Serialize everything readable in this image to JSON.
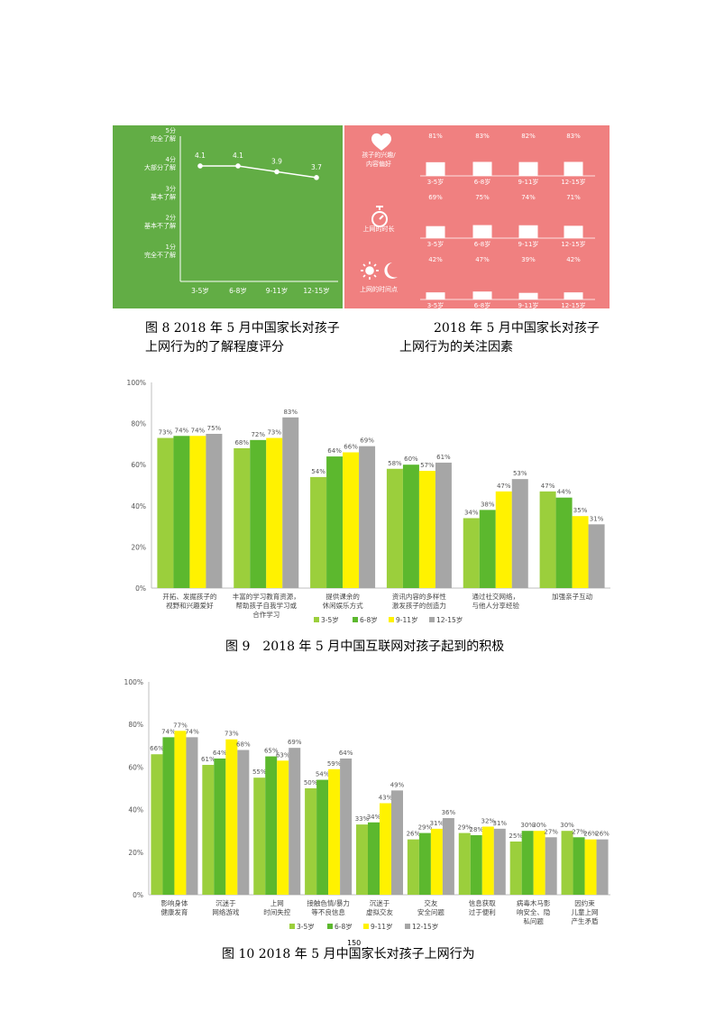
{
  "colors": {
    "green_bg": "#62ad45",
    "pink_bg": "#f08080",
    "s1": "#9bcf3c",
    "s2": "#5cb82e",
    "s3": "#fff200",
    "s4": "#a6a6a6"
  },
  "fig8": {
    "caption_line1": "图 8 2018 年 5 月中国家长对孩子",
    "caption_line2": "上网行为的了解程度评分",
    "icons": [
      "heart-icon",
      "stopwatch-icon",
      "sun-icon",
      "moon-icon"
    ]
  },
  "fig8b": {
    "caption_line1": "2018 年 5 月中国家长对孩子",
    "caption_line2": "上网行为的关注因素"
  },
  "fig9": {
    "caption": "图 9　2018 年 5 月中国互联网对孩子起到的积极"
  },
  "fig10": {
    "caption": "图 10 2018 年 5 月中国家长对孩子上网行为"
  },
  "page_number": "150",
  "chart_data": [
    {
      "type": "line",
      "categories": [
        "3-5岁",
        "6-8岁",
        "9-11岁",
        "12-15岁"
      ],
      "values": [
        4.1,
        4.1,
        3.9,
        3.7
      ],
      "ylim": [
        0,
        5
      ],
      "y_tick_labels": [
        {
          "v": 5,
          "l1": "5分",
          "l2": "完全了解"
        },
        {
          "v": 4,
          "l1": "4分",
          "l2": "大部分了解"
        },
        {
          "v": 3,
          "l1": "3分",
          "l2": "基本了解"
        },
        {
          "v": 2,
          "l1": "2分",
          "l2": "基本不了解"
        },
        {
          "v": 1,
          "l1": "1分",
          "l2": "完全不了解"
        }
      ],
      "data_labels": [
        "4.1",
        "4.1",
        "3.9",
        "3.7"
      ]
    },
    {
      "type": "bar",
      "categories": [
        "3-5岁",
        "6-8岁",
        "9-11岁",
        "12-15岁"
      ],
      "rows": [
        {
          "label": [
            "孩子的兴趣/",
            "内容偏好"
          ],
          "values": [
            81,
            83,
            82,
            83
          ]
        },
        {
          "label": [
            "上网的时长"
          ],
          "values": [
            69,
            75,
            74,
            71
          ]
        },
        {
          "label": [
            "上网的时间点"
          ],
          "values": [
            42,
            47,
            39,
            42
          ]
        }
      ],
      "ylim": [
        0,
        100
      ]
    },
    {
      "type": "bar",
      "ylim": [
        0,
        100
      ],
      "y_ticks": [
        "0%",
        "20%",
        "40%",
        "60%",
        "80%",
        "100%"
      ],
      "categories": [
        [
          "开拓、发掘孩子的",
          "视野和兴趣爱好"
        ],
        [
          "丰富的学习教育资源，",
          "帮助孩子自我学习或",
          "合作学习"
        ],
        [
          "提供课余的",
          "休闲娱乐方式"
        ],
        [
          "资讯内容的多样性",
          "激发孩子的创造力"
        ],
        [
          "通过社交网络，",
          "与他人分享经验"
        ],
        [
          "加强亲子互动"
        ]
      ],
      "series": [
        {
          "name": "3-5岁",
          "values": [
            73,
            68,
            54,
            58,
            34,
            47
          ]
        },
        {
          "name": "6-8岁",
          "values": [
            74,
            72,
            64,
            60,
            38,
            44
          ]
        },
        {
          "name": "9-11岁",
          "values": [
            74,
            73,
            66,
            57,
            47,
            35
          ]
        },
        {
          "name": "12-15岁",
          "values": [
            75,
            83,
            69,
            61,
            53,
            31
          ]
        }
      ]
    },
    {
      "type": "bar",
      "ylim": [
        0,
        100
      ],
      "y_ticks": [
        "0%",
        "20%",
        "40%",
        "60%",
        "80%",
        "100%"
      ],
      "categories": [
        [
          "影响身体",
          "健康发育"
        ],
        [
          "沉迷于",
          "网络游戏"
        ],
        [
          "上网",
          "时间失控"
        ],
        [
          "接触色情/暴力",
          "等不良信息"
        ],
        [
          "沉迷于",
          "虚拟交友"
        ],
        [
          "交友",
          "安全问题"
        ],
        [
          "信息获取",
          "过于便利"
        ],
        [
          "病毒木马影",
          "响安全、隐",
          "私问题"
        ],
        [
          "因约束",
          "儿童上网",
          "产生矛盾"
        ]
      ],
      "series": [
        {
          "name": "3-5岁",
          "values": [
            66,
            61,
            55,
            50,
            33,
            26,
            29,
            25,
            30
          ]
        },
        {
          "name": "6-8岁",
          "values": [
            74,
            64,
            65,
            54,
            34,
            29,
            28,
            30,
            27
          ]
        },
        {
          "name": "9-11岁",
          "values": [
            77,
            73,
            63,
            59,
            43,
            31,
            32,
            30,
            26
          ]
        },
        {
          "name": "12-15岁",
          "values": [
            74,
            68,
            69,
            64,
            49,
            36,
            31,
            27,
            26
          ]
        }
      ]
    }
  ]
}
